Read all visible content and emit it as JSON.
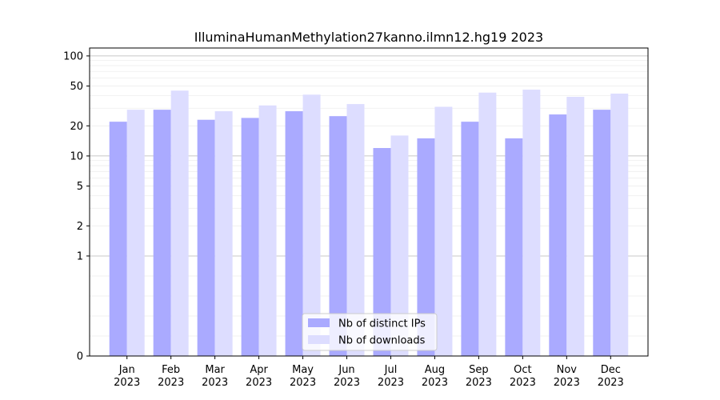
{
  "chart_data": {
    "type": "bar",
    "title": "IlluminaHumanMethylation27kanno.ilmn12.hg19 2023",
    "xlabel": "",
    "ylabel": "",
    "yscale": "symlog",
    "ylim": [
      0,
      120
    ],
    "yticks": [
      0,
      1,
      2,
      5,
      10,
      20,
      50,
      100
    ],
    "grid": "horizontal",
    "legend_position": "bottom-center",
    "categories": [
      [
        "Jan",
        "2023"
      ],
      [
        "Feb",
        "2023"
      ],
      [
        "Mar",
        "2023"
      ],
      [
        "Apr",
        "2023"
      ],
      [
        "May",
        "2023"
      ],
      [
        "Jun",
        "2023"
      ],
      [
        "Jul",
        "2023"
      ],
      [
        "Aug",
        "2023"
      ],
      [
        "Sep",
        "2023"
      ],
      [
        "Oct",
        "2023"
      ],
      [
        "Nov",
        "2023"
      ],
      [
        "Dec",
        "2023"
      ]
    ],
    "series": [
      {
        "name": "Nb of distinct IPs",
        "color": "#aaaaff",
        "values": [
          22,
          29,
          23,
          24,
          28,
          25,
          12,
          15,
          22,
          15,
          26,
          29
        ]
      },
      {
        "name": "Nb of downloads",
        "color": "#ddddff",
        "values": [
          29,
          45,
          28,
          32,
          41,
          33,
          16,
          31,
          43,
          46,
          39,
          42
        ]
      }
    ]
  }
}
